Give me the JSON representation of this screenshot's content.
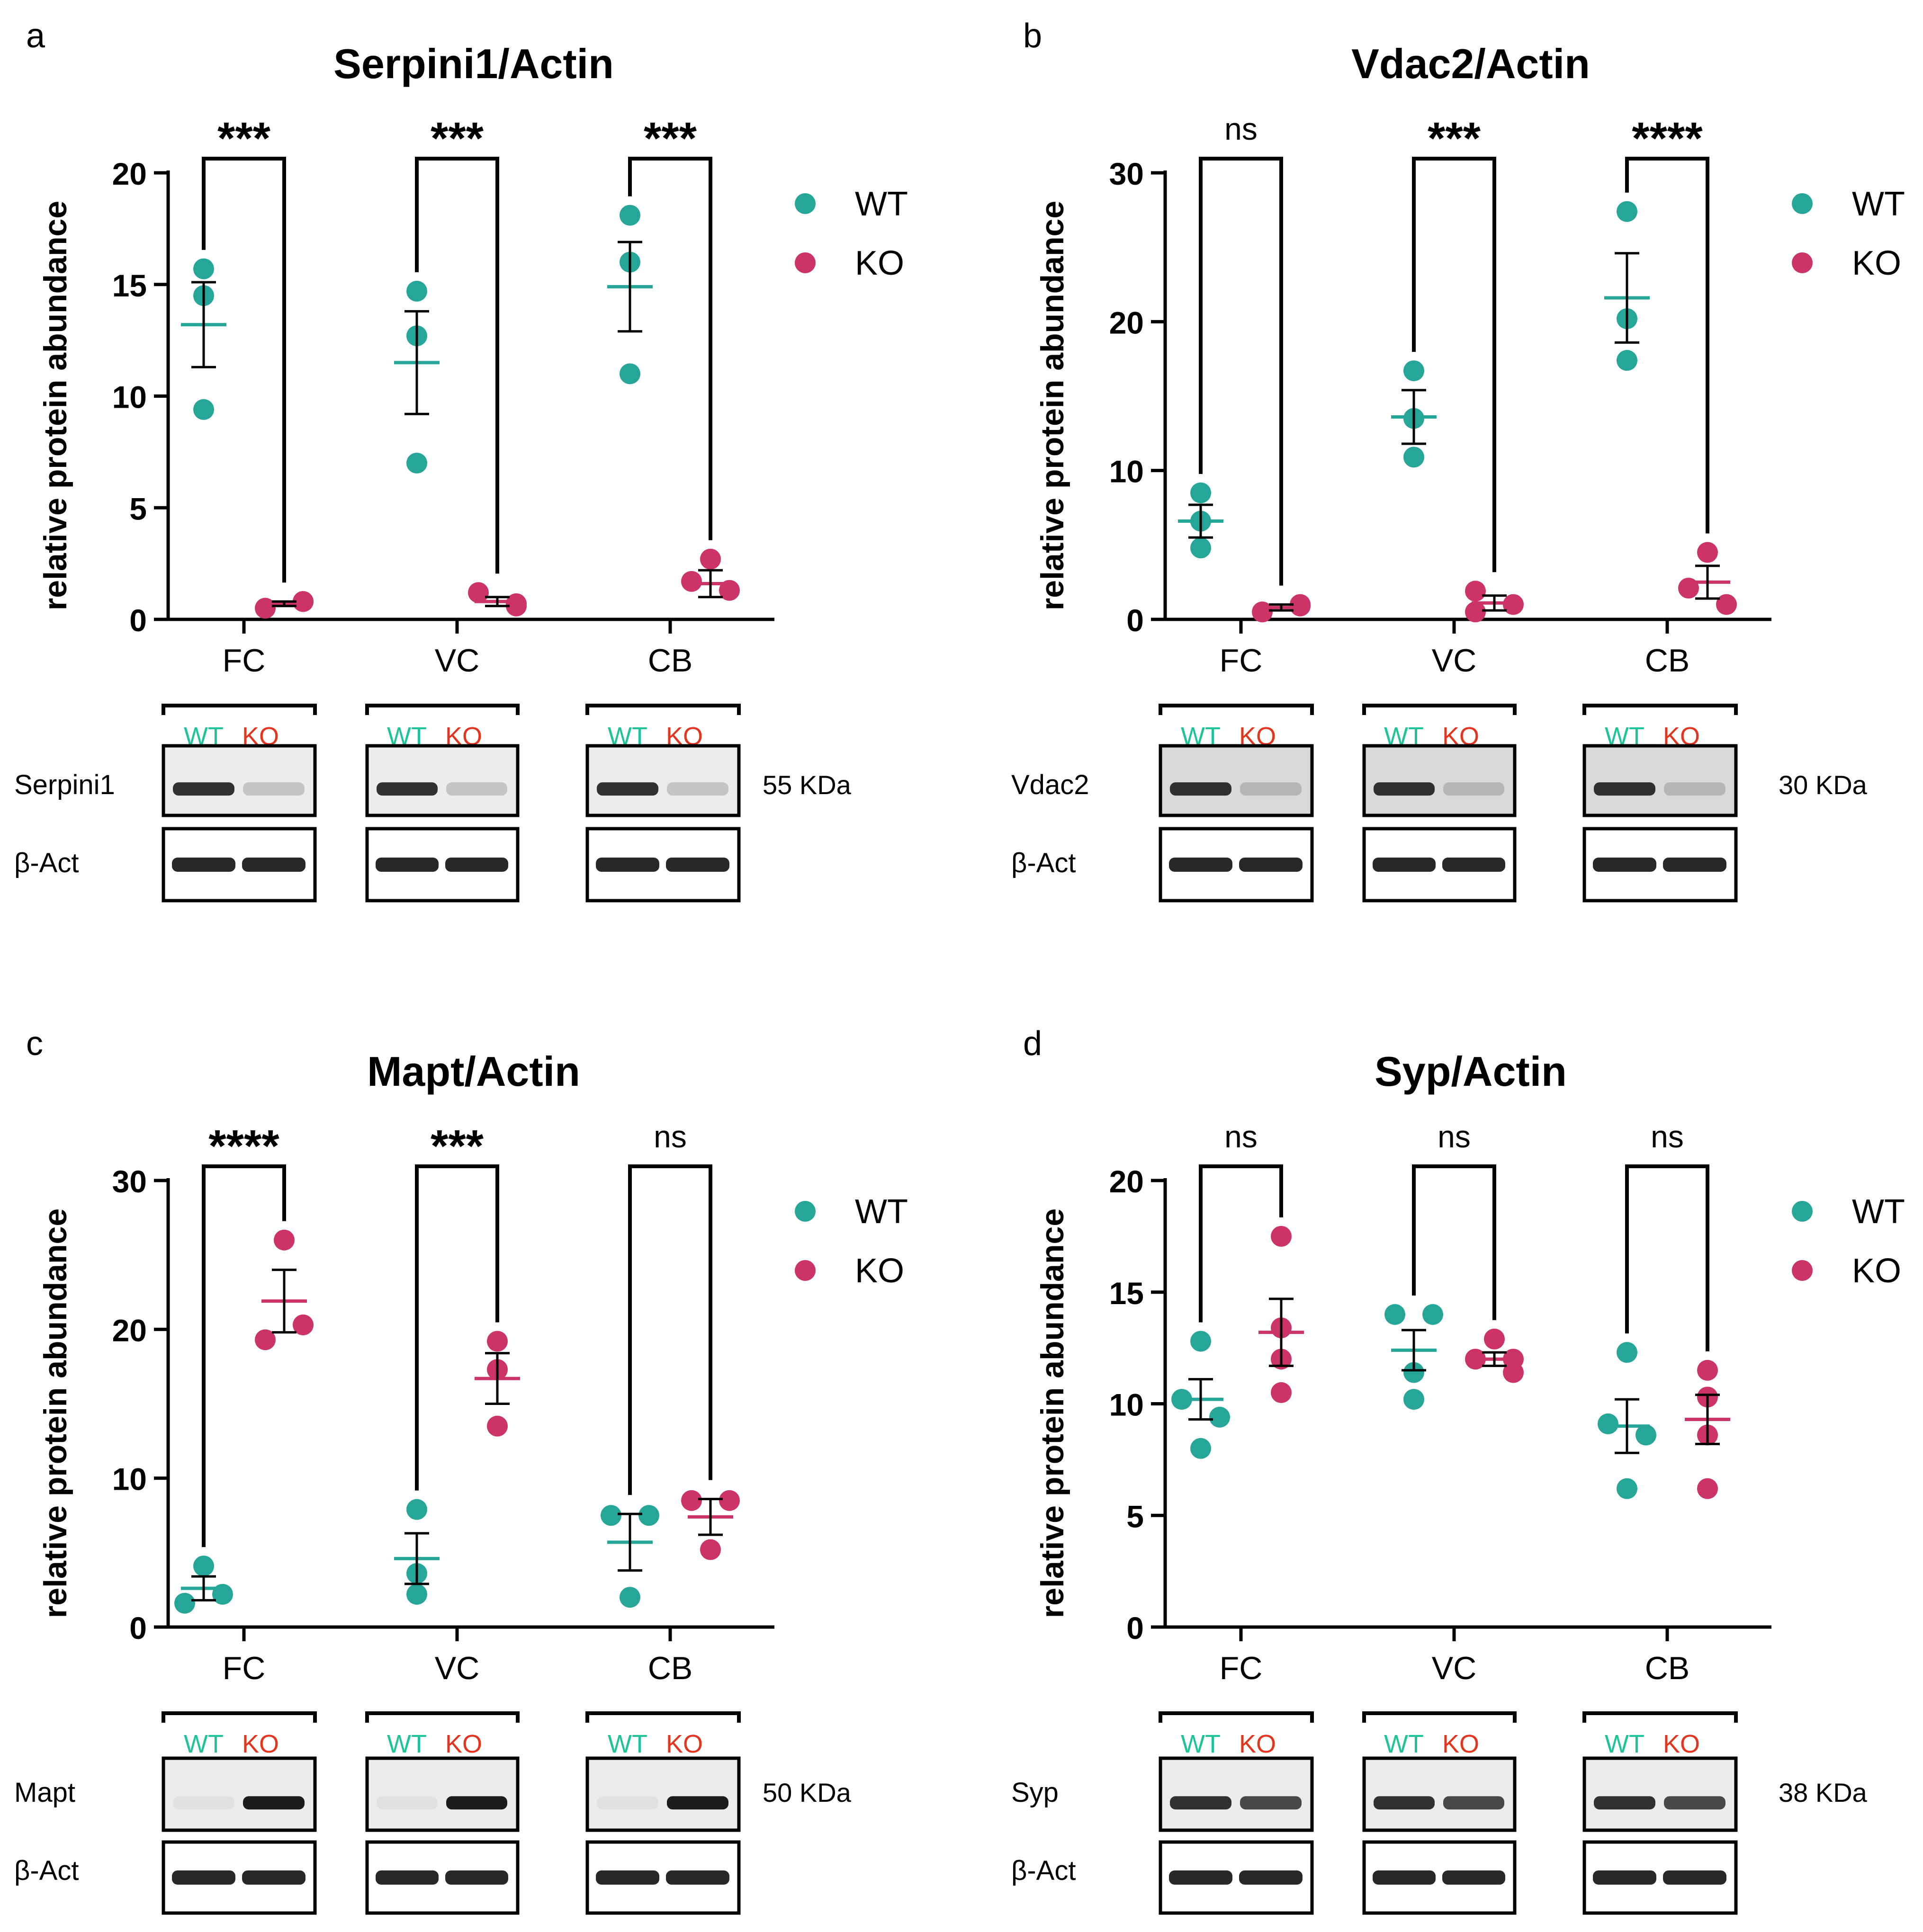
{
  "colors": {
    "wt": "#26A698",
    "ko": "#CC3366",
    "wt_label": "#1FC39A",
    "ko_label": "#E5341E",
    "axis": "#000000"
  },
  "legend": {
    "wt": "WT",
    "ko": "KO"
  },
  "axis_label": "relative protein abundance",
  "lane_labels": {
    "wt": "WT",
    "ko": "KO"
  },
  "loading_control_label": "β-Act",
  "chart_data": [
    {
      "type": "scatter",
      "panel": "a",
      "title": "Serpini1/Actin",
      "ylabel": "relative protein abundance",
      "ylim": [
        0,
        20
      ],
      "yticks": [
        0,
        5,
        10,
        15,
        20
      ],
      "categories": [
        "FC",
        "VC",
        "CB"
      ],
      "significance": [
        "***",
        "***",
        "***"
      ],
      "series": [
        {
          "name": "WT",
          "points": [
            [
              15.7,
              14.5,
              9.4
            ],
            [
              14.7,
              12.7,
              7.0
            ],
            [
              18.1,
              16.0,
              11.0
            ]
          ],
          "mean": [
            13.2,
            11.5,
            14.9
          ],
          "sem": [
            1.9,
            2.3,
            2.0
          ]
        },
        {
          "name": "KO",
          "points": [
            [
              0.5,
              0.8,
              0.8
            ],
            [
              1.2,
              0.6,
              0.7
            ],
            [
              2.7,
              1.7,
              1.3
            ]
          ],
          "mean": [
            0.7,
            0.8,
            1.6
          ],
          "sem": [
            0.1,
            0.2,
            0.6
          ]
        }
      ],
      "blot": {
        "protein": "Serpini1",
        "size": "55 KDa"
      }
    },
    {
      "type": "scatter",
      "panel": "b",
      "title": "Vdac2/Actin",
      "ylabel": "relative protein abundance",
      "ylim": [
        0,
        30
      ],
      "yticks": [
        0,
        10,
        20,
        30
      ],
      "categories": [
        "FC",
        "VC",
        "CB"
      ],
      "significance": [
        "ns",
        "***",
        "****"
      ],
      "series": [
        {
          "name": "WT",
          "points": [
            [
              8.5,
              6.6,
              4.8
            ],
            [
              16.7,
              13.5,
              10.9
            ],
            [
              27.4,
              20.2,
              17.4
            ]
          ],
          "mean": [
            6.6,
            13.6,
            21.6
          ],
          "sem": [
            1.1,
            1.8,
            3.0
          ]
        },
        {
          "name": "KO",
          "points": [
            [
              0.5,
              1.0,
              0.9
            ],
            [
              1.9,
              0.5,
              1.0
            ],
            [
              4.5,
              2.1,
              1.0
            ]
          ],
          "mean": [
            0.8,
            1.1,
            2.5
          ],
          "sem": [
            0.2,
            0.5,
            1.1
          ]
        }
      ],
      "blot": {
        "protein": "Vdac2",
        "size": "30 KDa"
      }
    },
    {
      "type": "scatter",
      "panel": "c",
      "title": "Mapt/Actin",
      "ylabel": "relative protein abundance",
      "ylim": [
        0,
        30
      ],
      "yticks": [
        0,
        10,
        20,
        30
      ],
      "categories": [
        "FC",
        "VC",
        "CB"
      ],
      "significance": [
        "****",
        "***",
        "ns"
      ],
      "series": [
        {
          "name": "WT",
          "points": [
            [
              4.1,
              1.6,
              2.2
            ],
            [
              7.9,
              3.6,
              2.2
            ],
            [
              7.5,
              7.5,
              2.0
            ]
          ],
          "mean": [
            2.6,
            4.6,
            5.7
          ],
          "sem": [
            0.8,
            1.7,
            1.9
          ]
        },
        {
          "name": "KO",
          "points": [
            [
              26.0,
              19.3,
              20.3
            ],
            [
              19.2,
              17.3,
              13.5
            ],
            [
              8.5,
              8.5,
              5.2
            ]
          ],
          "mean": [
            21.9,
            16.7,
            7.4
          ],
          "sem": [
            2.1,
            1.7,
            1.2
          ]
        }
      ],
      "blot": {
        "protein": "Mapt",
        "size": "50 KDa"
      }
    },
    {
      "type": "scatter",
      "panel": "d",
      "title": "Syp/Actin",
      "ylabel": "relative protein abundance",
      "ylim": [
        0,
        20
      ],
      "yticks": [
        0,
        5,
        10,
        15,
        20
      ],
      "categories": [
        "FC",
        "VC",
        "CB"
      ],
      "significance": [
        "ns",
        "ns",
        "ns"
      ],
      "series": [
        {
          "name": "WT",
          "points": [
            [
              12.8,
              10.2,
              9.4,
              8.0
            ],
            [
              14.0,
              14.0,
              11.4,
              10.2
            ],
            [
              12.3,
              9.1,
              8.6,
              6.2
            ]
          ],
          "mean": [
            10.2,
            12.4,
            9.0
          ],
          "sem": [
            0.9,
            0.9,
            1.2
          ]
        },
        {
          "name": "KO",
          "points": [
            [
              17.5,
              13.4,
              12.0,
              10.5
            ],
            [
              12.9,
              12.0,
              12.0,
              11.4
            ],
            [
              11.5,
              10.3,
              8.6,
              6.2
            ]
          ],
          "mean": [
            13.2,
            12.0,
            9.3
          ],
          "sem": [
            1.5,
            0.3,
            1.1
          ]
        }
      ],
      "blot": {
        "protein": "Syp",
        "size": "38 KDa"
      }
    }
  ]
}
